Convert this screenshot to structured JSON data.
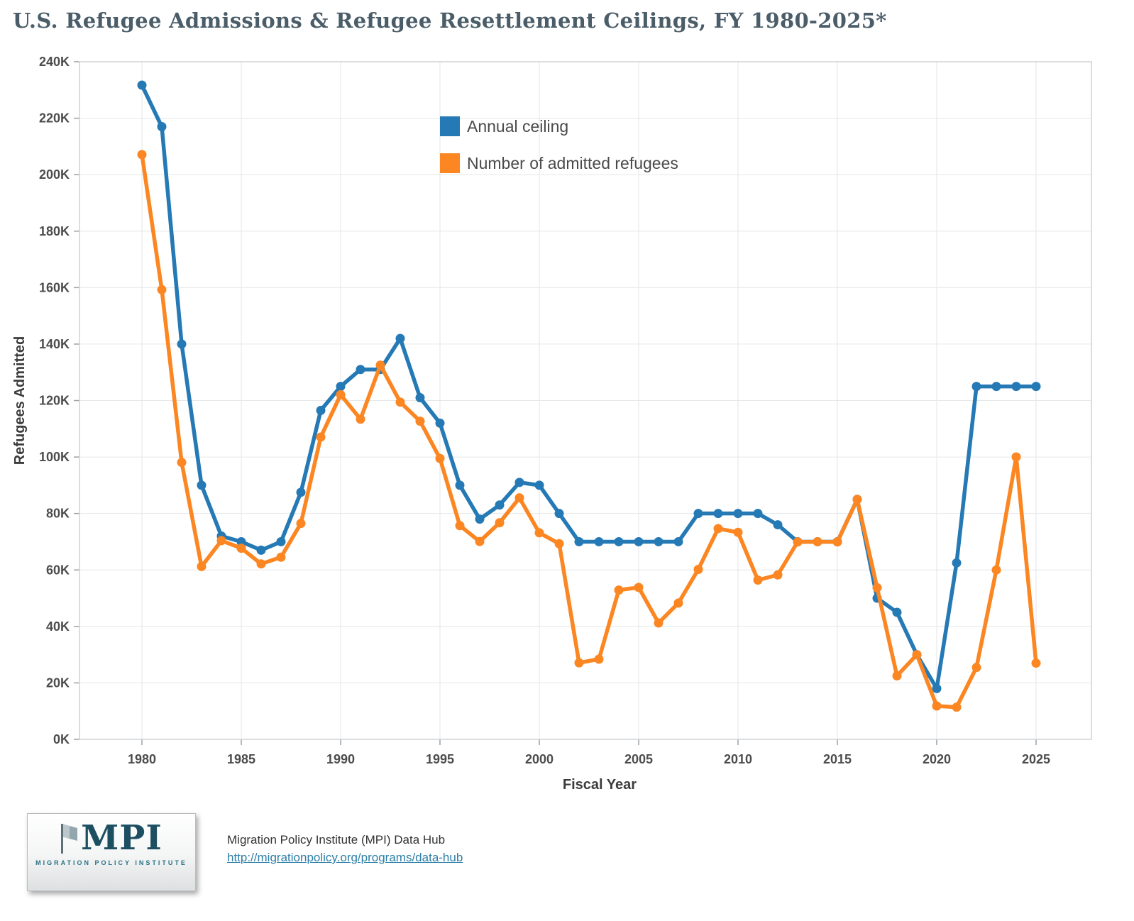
{
  "title": "U.S. Refugee Admissions & Refugee Resettlement Ceilings, FY 1980-2025*",
  "chart_data": {
    "type": "line",
    "title": "U.S. Refugee Admissions & Refugee Resettlement Ceilings, FY 1980-2025*",
    "xlabel": "Fiscal Year",
    "ylabel": "Refugees Admitted",
    "ylim": [
      0,
      240000
    ],
    "ytick_step": 20000,
    "ytick_label_suffix": "K",
    "x_range": [
      1980,
      2025
    ],
    "xticks": [
      1980,
      1985,
      1990,
      1995,
      2000,
      2005,
      2010,
      2015,
      2020,
      2025
    ],
    "grid": true,
    "legend_position": "inside-top-center",
    "x": [
      1980,
      1981,
      1982,
      1983,
      1984,
      1985,
      1986,
      1987,
      1988,
      1989,
      1990,
      1991,
      1992,
      1993,
      1994,
      1995,
      1996,
      1997,
      1998,
      1999,
      2000,
      2001,
      2002,
      2003,
      2004,
      2005,
      2006,
      2007,
      2008,
      2009,
      2010,
      2011,
      2012,
      2013,
      2014,
      2015,
      2016,
      2017,
      2018,
      2019,
      2020,
      2021,
      2022,
      2023,
      2024,
      2025
    ],
    "series": [
      {
        "name": "Annual ceiling",
        "color": "#2579b5",
        "values": [
          231700,
          217000,
          140000,
          90000,
          72000,
          70000,
          67000,
          70000,
          87500,
          116500,
          125000,
          131000,
          131000,
          142000,
          121000,
          112000,
          90000,
          78000,
          83000,
          91000,
          90000,
          80000,
          70000,
          70000,
          70000,
          70000,
          70000,
          70000,
          80000,
          80000,
          80000,
          80000,
          76000,
          70000,
          70000,
          70000,
          85000,
          50000,
          45000,
          30000,
          18000,
          62500,
          125000,
          125000,
          125000,
          125000
        ]
      },
      {
        "name": "Number of admitted refugees",
        "color": "#fb8622",
        "values": [
          207116,
          159252,
          98096,
          61218,
          70393,
          67704,
          62146,
          64528,
          76483,
          107070,
          122066,
          113389,
          132531,
          119448,
          112682,
          99490,
          75693,
          70085,
          76712,
          85525,
          73147,
          69304,
          27110,
          28403,
          52873,
          53813,
          41223,
          48282,
          60191,
          74654,
          73311,
          56424,
          58238,
          69926,
          69987,
          69933,
          84994,
          53716,
          22491,
          30000,
          11814,
          11411,
          25465,
          60014,
          100034,
          27000
        ]
      }
    ]
  },
  "footer": {
    "logo": {
      "text": "MPI",
      "subtext": "MIGRATION POLICY INSTITUTE"
    },
    "source_line": "Migration Policy Institute (MPI) Data Hub",
    "link": "http://migrationpolicy.org/programs/data-hub"
  }
}
